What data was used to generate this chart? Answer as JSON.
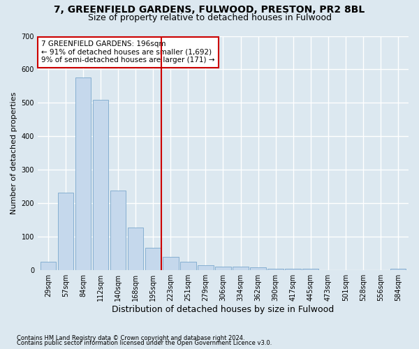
{
  "title1": "7, GREENFIELD GARDENS, FULWOOD, PRESTON, PR2 8BL",
  "title2": "Size of property relative to detached houses in Fulwood",
  "xlabel": "Distribution of detached houses by size in Fulwood",
  "ylabel": "Number of detached properties",
  "footnote1": "Contains HM Land Registry data © Crown copyright and database right 2024.",
  "footnote2": "Contains public sector information licensed under the Open Government Licence v3.0.",
  "annotation_line1": "7 GREENFIELD GARDENS: 196sqm",
  "annotation_line2": "← 91% of detached houses are smaller (1,692)",
  "annotation_line3": "9% of semi-detached houses are larger (171) →",
  "bar_labels": [
    "29sqm",
    "57sqm",
    "84sqm",
    "112sqm",
    "140sqm",
    "168sqm",
    "195sqm",
    "223sqm",
    "251sqm",
    "279sqm",
    "306sqm",
    "334sqm",
    "362sqm",
    "390sqm",
    "417sqm",
    "445sqm",
    "473sqm",
    "501sqm",
    "528sqm",
    "556sqm",
    "584sqm"
  ],
  "bar_values": [
    25,
    232,
    575,
    510,
    238,
    127,
    68,
    40,
    25,
    14,
    10,
    10,
    8,
    5,
    4,
    5,
    0,
    0,
    0,
    0,
    5
  ],
  "bar_color": "#c5d8ec",
  "bar_edge_color": "#7aa8cc",
  "marker_index": 6,
  "marker_color": "#cc0000",
  "ylim": [
    0,
    700
  ],
  "yticks": [
    0,
    100,
    200,
    300,
    400,
    500,
    600,
    700
  ],
  "bg_color": "#dce8f0",
  "plot_bg_color": "#dce8f0",
  "grid_color": "#ffffff",
  "title1_fontsize": 10,
  "title2_fontsize": 9,
  "xlabel_fontsize": 9,
  "ylabel_fontsize": 8,
  "tick_fontsize": 7,
  "annotation_fontsize": 7.5
}
